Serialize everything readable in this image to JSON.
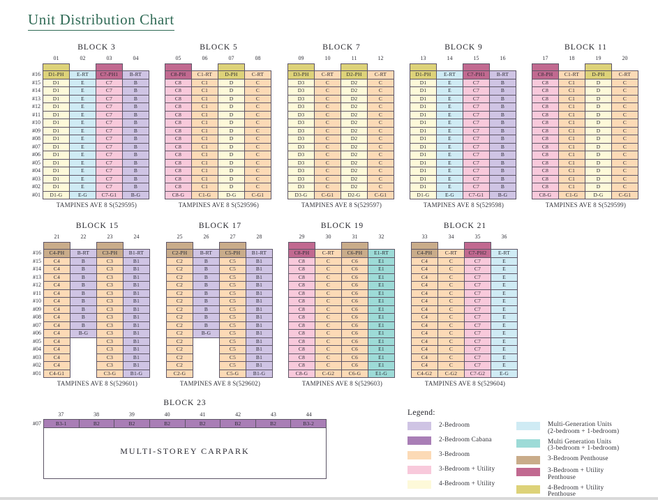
{
  "title": "Unit Distribution Chart",
  "palette": {
    "p2": "#cfc4e4",
    "cab": "#a97eb6",
    "p3": "#fcdab6",
    "u3": "#f8c9db",
    "u4": "#fdf9d9",
    "mg2": "#cfebf4",
    "mg3": "#9ddbd7",
    "ph3": "#c9ac8a",
    "ph3u": "#c16990",
    "ph4u": "#ddd279"
  },
  "title_color": "#2f6a55",
  "floors": [
    "#16",
    "#15",
    "#14",
    "#13",
    "#12",
    "#11",
    "#10",
    "#09",
    "#08",
    "#07",
    "#06",
    "#05",
    "#04",
    "#03",
    "#02",
    "#01"
  ],
  "blocks": [
    {
      "name": "BLOCK 3",
      "address": "TAMPINES AVE 8 S(529595)",
      "row": 1,
      "show_floors": true,
      "columns": [
        {
          "no": "01",
          "cap": "ph4u",
          "cells": [
            [
              "D1-PH",
              "ph4u",
              1
            ],
            [
              "D1",
              "u4",
              14
            ],
            [
              "D1-G",
              "u4",
              1
            ]
          ]
        },
        {
          "no": "02",
          "cap": null,
          "cells": [
            [
              "E-RT",
              "mg2",
              1
            ],
            [
              "E",
              "mg2",
              14
            ],
            [
              "E-G",
              "mg2",
              1
            ]
          ]
        },
        {
          "no": "03",
          "cap": "ph3u",
          "cells": [
            [
              "C7-PH1",
              "ph3u",
              1
            ],
            [
              "C7",
              "u3",
              14
            ],
            [
              "C7-G1",
              "u3",
              1
            ]
          ]
        },
        {
          "no": "04",
          "cap": null,
          "cells": [
            [
              "B-RT",
              "p2",
              1
            ],
            [
              "B",
              "p2",
              14
            ],
            [
              "B-G",
              "p2",
              1
            ]
          ]
        }
      ]
    },
    {
      "name": "BLOCK 5",
      "address": "TAMPINES AVE 8 S(529596)",
      "row": 1,
      "show_floors": false,
      "columns": [
        {
          "no": "05",
          "cap": "ph3u",
          "cells": [
            [
              "C8-PH",
              "ph3u",
              1
            ],
            [
              "C8",
              "u3",
              14
            ],
            [
              "C8-G",
              "u3",
              1
            ]
          ]
        },
        {
          "no": "06",
          "cap": null,
          "cells": [
            [
              "C1-RT",
              "p3",
              1
            ],
            [
              "C1",
              "p3",
              14
            ],
            [
              "C1-G",
              "p3",
              1
            ]
          ]
        },
        {
          "no": "07",
          "cap": "ph4u",
          "cells": [
            [
              "D-PH",
              "ph4u",
              1
            ],
            [
              "D",
              "u4",
              14
            ],
            [
              "D-G",
              "u4",
              1
            ]
          ]
        },
        {
          "no": "08",
          "cap": null,
          "cells": [
            [
              "C-RT",
              "p3",
              1
            ],
            [
              "C",
              "p3",
              14
            ],
            [
              "C-G1",
              "p3",
              1
            ]
          ]
        }
      ]
    },
    {
      "name": "BLOCK 7",
      "address": "TAMPINES AVE 8 S(529597)",
      "row": 1,
      "show_floors": false,
      "columns": [
        {
          "no": "09",
          "cap": "ph4u",
          "cells": [
            [
              "D3-PH",
              "ph4u",
              1
            ],
            [
              "D3",
              "u4",
              14
            ],
            [
              "D3-G",
              "u4",
              1
            ]
          ]
        },
        {
          "no": "10",
          "cap": null,
          "cells": [
            [
              "C-RT",
              "p3",
              1
            ],
            [
              "C",
              "p3",
              14
            ],
            [
              "C-G1",
              "p3",
              1
            ]
          ]
        },
        {
          "no": "11",
          "cap": "ph4u",
          "cells": [
            [
              "D2-PH",
              "ph4u",
              1
            ],
            [
              "D2",
              "u4",
              14
            ],
            [
              "D2-G",
              "u4",
              1
            ]
          ]
        },
        {
          "no": "12",
          "cap": null,
          "cells": [
            [
              "C-RT",
              "p3",
              1
            ],
            [
              "C",
              "p3",
              14
            ],
            [
              "C-G1",
              "p3",
              1
            ]
          ]
        }
      ]
    },
    {
      "name": "BLOCK 9",
      "address": "TAMPINES AVE 8 S(529598)",
      "row": 1,
      "show_floors": false,
      "columns": [
        {
          "no": "13",
          "cap": "ph4u",
          "cells": [
            [
              "D1-PH",
              "ph4u",
              1
            ],
            [
              "D1",
              "u4",
              14
            ],
            [
              "D1-G",
              "u4",
              1
            ]
          ]
        },
        {
          "no": "14",
          "cap": null,
          "cells": [
            [
              "E-RT",
              "mg2",
              1
            ],
            [
              "E",
              "mg2",
              14
            ],
            [
              "E-G",
              "mg2",
              1
            ]
          ]
        },
        {
          "no": "15",
          "cap": "ph3u",
          "cells": [
            [
              "C7-PH1",
              "ph3u",
              1
            ],
            [
              "C7",
              "u3",
              14
            ],
            [
              "C7-G1",
              "u3",
              1
            ]
          ]
        },
        {
          "no": "16",
          "cap": null,
          "cells": [
            [
              "B-RT",
              "p2",
              1
            ],
            [
              "B",
              "p2",
              14
            ],
            [
              "B-G",
              "p2",
              1
            ]
          ]
        }
      ]
    },
    {
      "name": "BLOCK 11",
      "address": "TAMPINES AVE 8 S(529599)",
      "row": 1,
      "show_floors": false,
      "columns": [
        {
          "no": "17",
          "cap": "ph3u",
          "cells": [
            [
              "C8-PH",
              "ph3u",
              1
            ],
            [
              "C8",
              "u3",
              14
            ],
            [
              "C8-G",
              "u3",
              1
            ]
          ]
        },
        {
          "no": "18",
          "cap": null,
          "cells": [
            [
              "C1-RT",
              "p3",
              1
            ],
            [
              "C1",
              "p3",
              14
            ],
            [
              "C1-G",
              "p3",
              1
            ]
          ]
        },
        {
          "no": "19",
          "cap": "ph4u",
          "cells": [
            [
              "D-PH",
              "ph4u",
              1
            ],
            [
              "D",
              "u4",
              14
            ],
            [
              "D-G",
              "u4",
              1
            ]
          ]
        },
        {
          "no": "20",
          "cap": null,
          "cells": [
            [
              "C-RT",
              "p3",
              1
            ],
            [
              "C",
              "p3",
              14
            ],
            [
              "C-G1",
              "p3",
              1
            ]
          ]
        }
      ]
    },
    {
      "name": "BLOCK 15",
      "address": "TAMPINES AVE 8 S(529601)",
      "row": 2,
      "show_floors": true,
      "columns": [
        {
          "no": "21",
          "cap": "ph3",
          "cells": [
            [
              "C4-PH",
              "ph3",
              1
            ],
            [
              "C4",
              "p3",
              14
            ],
            [
              "C4-G1",
              "p3",
              1
            ]
          ]
        },
        {
          "no": "22",
          "cap": null,
          "cells": [
            [
              "B-RT",
              "p2",
              1
            ],
            [
              "B",
              "p2",
              9
            ],
            [
              "B-G",
              "p2",
              1
            ],
            [
              null,
              null,
              5
            ]
          ]
        },
        {
          "no": "23",
          "cap": "ph3",
          "cells": [
            [
              "C3-PH",
              "ph3",
              1
            ],
            [
              "C3",
              "p3",
              14
            ],
            [
              "C3-G",
              "p3",
              1
            ]
          ]
        },
        {
          "no": "24",
          "cap": null,
          "cells": [
            [
              "B1-RT",
              "p2",
              1
            ],
            [
              "B1",
              "p2",
              14
            ],
            [
              "B1-G",
              "p2",
              1
            ]
          ]
        }
      ]
    },
    {
      "name": "BLOCK 17",
      "address": "TAMPINES AVE 8 S(529602)",
      "row": 2,
      "show_floors": false,
      "columns": [
        {
          "no": "25",
          "cap": "ph3",
          "cells": [
            [
              "C2-PH",
              "ph3",
              1
            ],
            [
              "C2",
              "p3",
              14
            ],
            [
              "C2-G",
              "p3",
              1
            ]
          ]
        },
        {
          "no": "26",
          "cap": null,
          "cells": [
            [
              "B-RT",
              "p2",
              1
            ],
            [
              "B",
              "p2",
              9
            ],
            [
              "B-G",
              "p2",
              1
            ],
            [
              null,
              null,
              5
            ]
          ]
        },
        {
          "no": "27",
          "cap": "ph3",
          "cells": [
            [
              "C5-PH",
              "ph3",
              1
            ],
            [
              "C5",
              "p3",
              14
            ],
            [
              "C5-G",
              "p3",
              1
            ]
          ]
        },
        {
          "no": "28",
          "cap": null,
          "cells": [
            [
              "B1-RT",
              "p2",
              1
            ],
            [
              "B1",
              "p2",
              14
            ],
            [
              "B1-G",
              "p2",
              1
            ]
          ]
        }
      ]
    },
    {
      "name": "BLOCK 19",
      "address": "TAMPINES AVE 8 S(529603)",
      "row": 2,
      "show_floors": false,
      "columns": [
        {
          "no": "29",
          "cap": "ph3u",
          "cells": [
            [
              "C8-PH",
              "ph3u",
              1
            ],
            [
              "C8",
              "u3",
              14
            ],
            [
              "C8-G",
              "u3",
              1
            ]
          ]
        },
        {
          "no": "30",
          "cap": null,
          "cells": [
            [
              "C-RT",
              "p3",
              1
            ],
            [
              "C",
              "p3",
              14
            ],
            [
              "C-G2",
              "p3",
              1
            ]
          ]
        },
        {
          "no": "31",
          "cap": "ph3",
          "cells": [
            [
              "C6-PH",
              "ph3",
              1
            ],
            [
              "C6",
              "p3",
              14
            ],
            [
              "C6-G",
              "p3",
              1
            ]
          ]
        },
        {
          "no": "32",
          "cap": null,
          "cells": [
            [
              "E1-RT",
              "mg3",
              1
            ],
            [
              "E1",
              "mg3",
              14
            ],
            [
              "E1-G",
              "mg3",
              1
            ]
          ]
        }
      ]
    },
    {
      "name": "BLOCK 21",
      "address": "TAMPINES AVE 8 S(529604)",
      "row": 2,
      "show_floors": false,
      "columns": [
        {
          "no": "33",
          "cap": "ph3",
          "cells": [
            [
              "C4-PH",
              "ph3",
              1
            ],
            [
              "C4",
              "p3",
              14
            ],
            [
              "C4-G2",
              "p3",
              1
            ]
          ]
        },
        {
          "no": "34",
          "cap": null,
          "cells": [
            [
              "C-RT",
              "p3",
              1
            ],
            [
              "C",
              "p3",
              14
            ],
            [
              "C-G2",
              "p3",
              1
            ]
          ]
        },
        {
          "no": "35",
          "cap": "ph3u",
          "cells": [
            [
              "C7-PH2",
              "ph3u",
              1
            ],
            [
              "C7",
              "u3",
              14
            ],
            [
              "C7-G2",
              "u3",
              1
            ]
          ]
        },
        {
          "no": "36",
          "cap": null,
          "cells": [
            [
              "E-RT",
              "mg2",
              1
            ],
            [
              "E",
              "mg2",
              14
            ],
            [
              "E-G",
              "mg2",
              1
            ]
          ]
        }
      ]
    }
  ],
  "carpark_block": {
    "name": "BLOCK 23",
    "floor": "#07",
    "column_numbers": [
      "37",
      "38",
      "39",
      "40",
      "41",
      "42",
      "43",
      "44"
    ],
    "units": [
      [
        "B3-1",
        "cab"
      ],
      [
        "B2",
        "cab"
      ],
      [
        "B2",
        "cab"
      ],
      [
        "B2",
        "cab"
      ],
      [
        "B2",
        "cab"
      ],
      [
        "B2",
        "cab"
      ],
      [
        "B2",
        "cab"
      ],
      [
        "B3-2",
        "cab"
      ]
    ],
    "label": "MULTI-STOREY CARPARK"
  },
  "legend": {
    "title": "Legend:",
    "left": [
      {
        "color": "p2",
        "label": "2-Bedroom"
      },
      {
        "color": "cab",
        "label": "2-Bedroom Cabana"
      },
      {
        "color": "p3",
        "label": "3-Bedroom"
      },
      {
        "color": "u3",
        "label": "3-Bedroom + Utility"
      },
      {
        "color": "u4",
        "label": "4-Bedroom + Utility"
      }
    ],
    "right": [
      {
        "color": "mg2",
        "label": "Multi-Generation Units\n(2-bedroom + 1-bedroom)"
      },
      {
        "color": "mg3",
        "label": "Multi Generation Units\n(3-bedroom + 1-bedroom)"
      },
      {
        "color": "ph3",
        "label": "3-Bedroom Penthouse"
      },
      {
        "color": "ph3u",
        "label": "3-Bedroom + Utility\nPenthouse"
      },
      {
        "color": "ph4u",
        "label": "4-Bedroom + Utility\nPenthouse"
      }
    ]
  }
}
